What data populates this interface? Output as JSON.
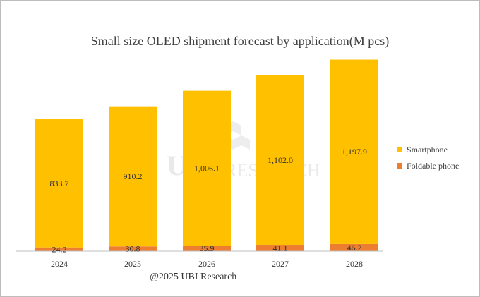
{
  "chart_data": {
    "type": "bar",
    "stacked": true,
    "title": "Small size OLED shipment forecast by application(M pcs)",
    "categories": [
      "2024",
      "2025",
      "2026",
      "2027",
      "2028"
    ],
    "series": [
      {
        "name": "Foldable phone",
        "color": "#ED7D31",
        "values": [
          24.2,
          30.8,
          35.9,
          41.1,
          46.2
        ],
        "labels": [
          "24.2",
          "30.8",
          "35.9",
          "41.1",
          "46.2"
        ]
      },
      {
        "name": "Smartphone",
        "color": "#FFC000",
        "values": [
          833.7,
          910.2,
          1006.1,
          1102.0,
          1197.9
        ],
        "labels": [
          "833.7",
          "910.2",
          "1,006.1",
          "1,102.0",
          "1,197.9"
        ]
      }
    ],
    "legend": [
      "Smartphone",
      "Foldable phone"
    ],
    "legend_position": "right",
    "grid": false
  },
  "credit": "@2025 UBI Research",
  "watermark": {
    "logo": "UBI",
    "text": "RESEARCH"
  }
}
